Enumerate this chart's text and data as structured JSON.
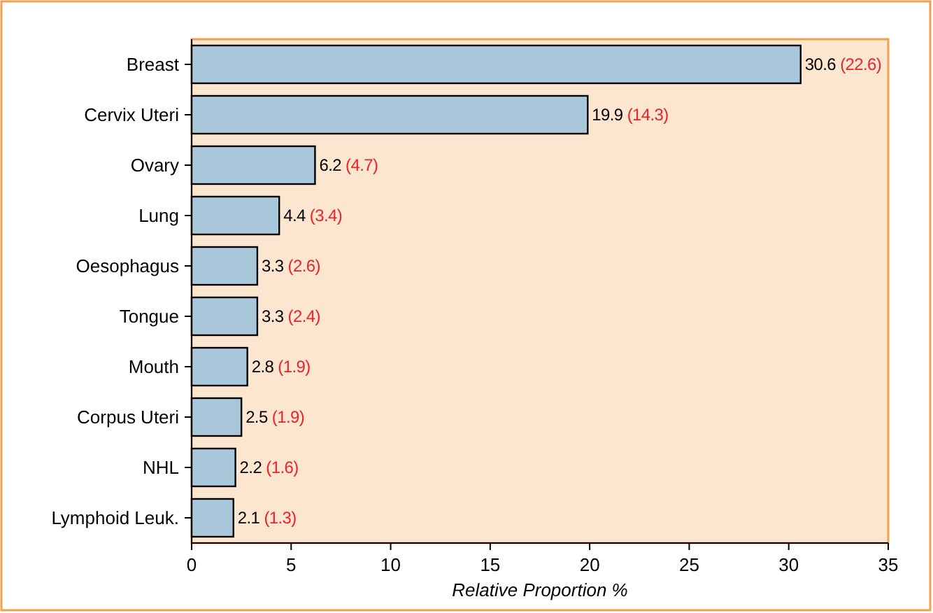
{
  "chart_data": {
    "type": "bar",
    "orientation": "horizontal",
    "categories": [
      "Breast",
      "Cervix Uteri",
      "Ovary",
      "Lung",
      "Oesophagus",
      "Tongue",
      "Mouth",
      "Corpus Uteri",
      "NHL",
      "Lymphoid Leuk."
    ],
    "values": [
      30.6,
      19.9,
      6.2,
      4.4,
      3.3,
      3.3,
      2.8,
      2.5,
      2.2,
      2.1
    ],
    "value_labels": [
      "30.6 (22.6)",
      "19.9 (14.3)",
      "6.2 (4.7)",
      "4.4 (3.4)",
      "3.3 (2.6)",
      "3.3 (2.4)",
      "2.8 (1.9)",
      "2.5 (1.9)",
      "2.2 (1.6)",
      "2.1 (1.3)"
    ],
    "color": "#a9c7da",
    "xlim": [
      0,
      35
    ],
    "xticks": [
      0,
      5,
      10,
      15,
      20,
      25,
      30,
      35
    ],
    "xlabel": "Relative Proportion %",
    "grid": false
  }
}
